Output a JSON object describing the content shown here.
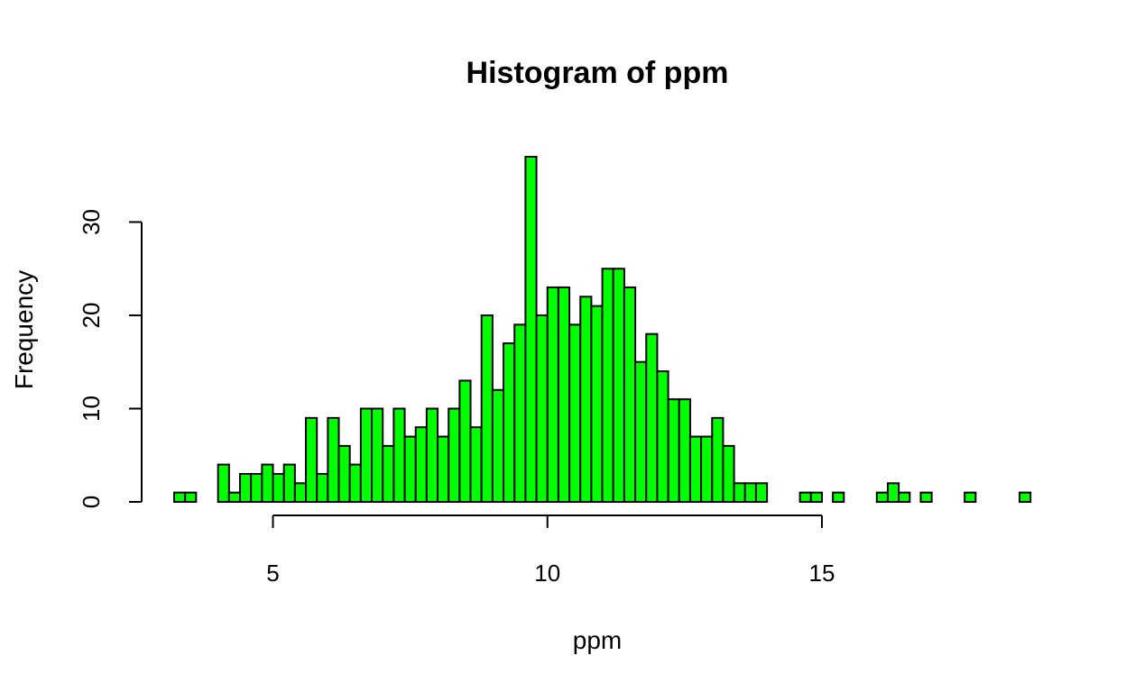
{
  "chart_data": {
    "type": "bar",
    "title": "Histogram of ppm",
    "xlabel": "ppm",
    "ylabel": "Frequency",
    "bin_width": 0.2,
    "bins_start": 3.2,
    "counts": [
      1,
      1,
      0,
      0,
      4,
      1,
      3,
      3,
      4,
      3,
      4,
      2,
      9,
      3,
      9,
      6,
      4,
      10,
      10,
      6,
      10,
      7,
      8,
      10,
      7,
      10,
      13,
      8,
      20,
      12,
      17,
      19,
      37,
      20,
      23,
      23,
      19,
      22,
      21,
      25,
      25,
      23,
      15,
      18,
      14,
      11,
      11,
      7,
      7,
      9,
      6,
      2,
      2,
      2,
      0,
      0,
      0,
      1,
      1,
      0,
      1,
      0,
      0,
      0,
      1,
      2,
      1,
      0,
      1,
      0,
      0,
      0,
      1,
      0,
      0,
      0,
      0,
      1
    ],
    "x_ticks": [
      5,
      10,
      15
    ],
    "y_ticks": [
      0,
      10,
      20,
      30
    ],
    "xlim": [
      3.2,
      18.6
    ],
    "ylim": [
      0,
      37
    ],
    "bar_color": "#00ff00",
    "grid": false
  }
}
